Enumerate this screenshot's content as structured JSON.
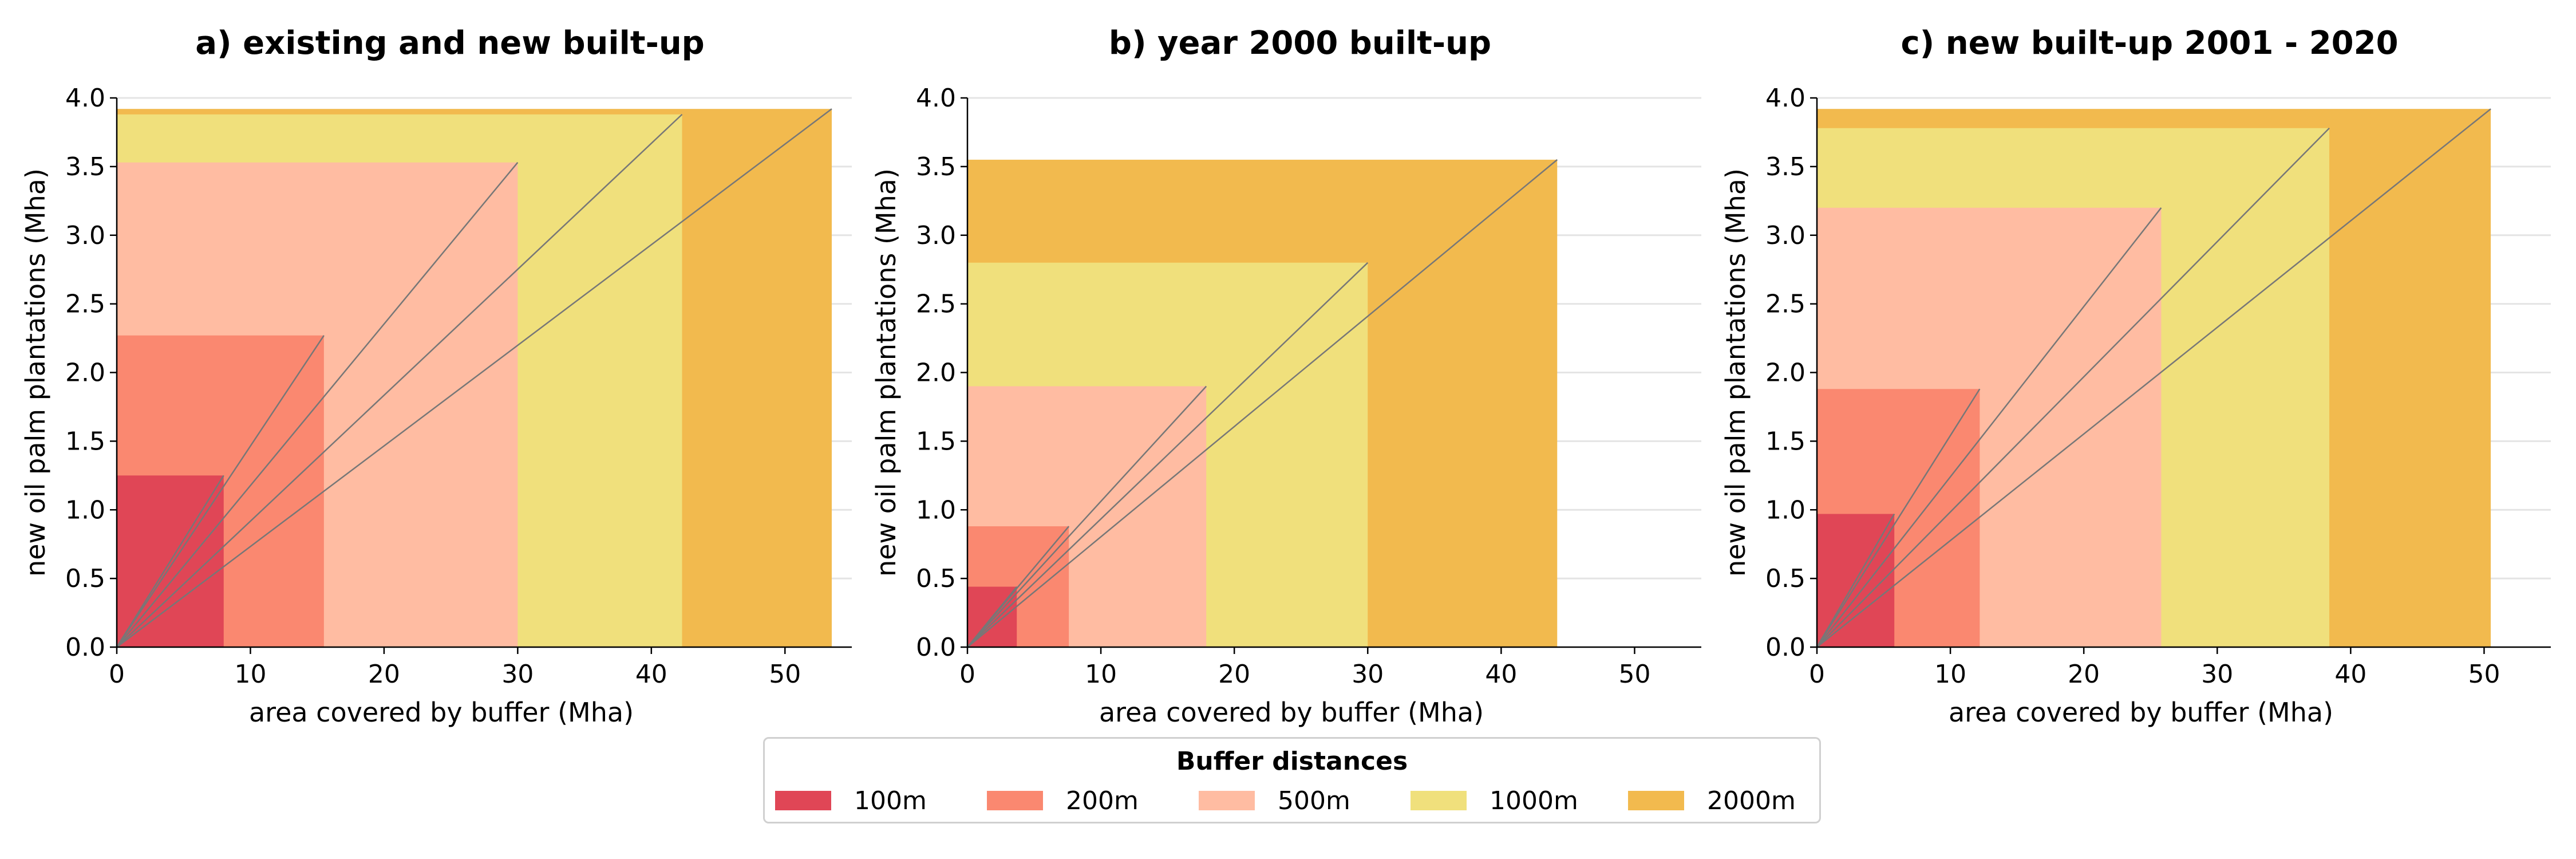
{
  "colors": {
    "grid": "#e4e4e4",
    "spine": "#000000",
    "ratio_line": "#777777"
  },
  "legend": {
    "title": "Buffer distances",
    "items": [
      {
        "label": "100m",
        "color": "#E04656"
      },
      {
        "label": "200m",
        "color": "#FA8870"
      },
      {
        "label": "500m",
        "color": "#FFBCA2"
      },
      {
        "label": "1000m",
        "color": "#F0E07C"
      },
      {
        "label": "2000m",
        "color": "#F2BA4E"
      }
    ]
  },
  "chart_data": [
    {
      "type": "area",
      "title": "a) existing and new built-up",
      "xlabel": "area covered by buffer (Mha)",
      "ylabel": "new oil palm plantations (Mha)",
      "xlim": [
        0,
        55
      ],
      "ylim": [
        0,
        4.0
      ],
      "xticks": [
        "0",
        "10",
        "20",
        "30",
        "40",
        "50"
      ],
      "yticks": [
        "0.0",
        "0.5",
        "1.0",
        "1.5",
        "2.0",
        "2.5",
        "3.0",
        "3.5",
        "4.0"
      ],
      "grid": "horizontal",
      "series": [
        {
          "name": "100m",
          "x": 8.0,
          "y": 1.25
        },
        {
          "name": "200m",
          "x": 15.5,
          "y": 2.27
        },
        {
          "name": "500m",
          "x": 30.0,
          "y": 3.53
        },
        {
          "name": "1000m",
          "x": 42.3,
          "y": 3.88
        },
        {
          "name": "2000m",
          "x": 53.5,
          "y": 3.92
        }
      ]
    },
    {
      "type": "area",
      "title": "b) year 2000 built-up",
      "xlabel": "area covered by buffer (Mha)",
      "ylabel": "new oil palm plantations (Mha)",
      "xlim": [
        0,
        55
      ],
      "ylim": [
        0,
        4.0
      ],
      "xticks": [
        "0",
        "10",
        "20",
        "30",
        "40",
        "50"
      ],
      "yticks": [
        "0.0",
        "0.5",
        "1.0",
        "1.5",
        "2.0",
        "2.5",
        "3.0",
        "3.5",
        "4.0"
      ],
      "grid": "horizontal",
      "series": [
        {
          "name": "100m",
          "x": 3.7,
          "y": 0.44
        },
        {
          "name": "200m",
          "x": 7.6,
          "y": 0.88
        },
        {
          "name": "500m",
          "x": 17.9,
          "y": 1.9
        },
        {
          "name": "1000m",
          "x": 30.0,
          "y": 2.8
        },
        {
          "name": "2000m",
          "x": 44.2,
          "y": 3.55
        }
      ]
    },
    {
      "type": "area",
      "title": "c) new built-up 2001 - 2020",
      "xlabel": "area covered by buffer (Mha)",
      "ylabel": "new oil palm plantations (Mha)",
      "xlim": [
        0,
        55
      ],
      "ylim": [
        0,
        4.0
      ],
      "xticks": [
        "0",
        "10",
        "20",
        "30",
        "40",
        "50"
      ],
      "yticks": [
        "0.0",
        "0.5",
        "1.0",
        "1.5",
        "2.0",
        "2.5",
        "3.0",
        "3.5",
        "4.0"
      ],
      "grid": "horizontal",
      "series": [
        {
          "name": "100m",
          "x": 5.8,
          "y": 0.97
        },
        {
          "name": "200m",
          "x": 12.2,
          "y": 1.88
        },
        {
          "name": "500m",
          "x": 25.8,
          "y": 3.2
        },
        {
          "name": "1000m",
          "x": 38.4,
          "y": 3.78
        },
        {
          "name": "2000m",
          "x": 50.5,
          "y": 3.92
        }
      ]
    }
  ]
}
